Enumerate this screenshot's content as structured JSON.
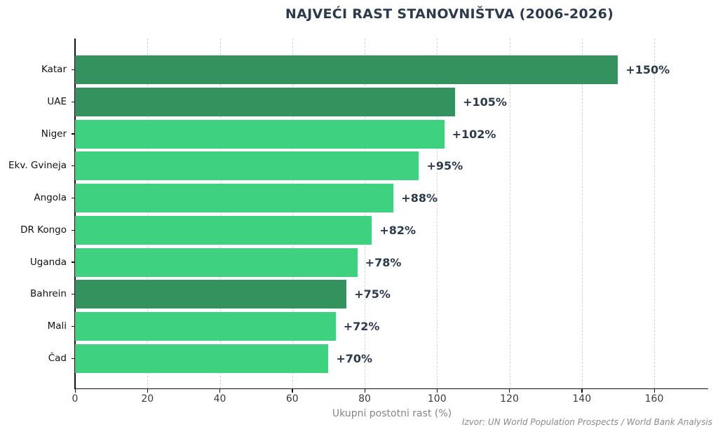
{
  "chart_data": {
    "type": "bar",
    "orientation": "horizontal",
    "title": "NAJVEĆI RAST STANOVNIŠTVA (2006-2026)",
    "xlabel": "Ukupni postotni rast (%)",
    "ylabel": "",
    "source": "Izvor: UN World Population Prospects / World Bank Analysis",
    "categories": [
      "Katar",
      "UAE",
      "Niger",
      "Ekv. Gvineja",
      "Angola",
      "DR Kongo",
      "Uganda",
      "Bahrein",
      "Mali",
      "Čad"
    ],
    "values": [
      150,
      105,
      102,
      95,
      88,
      82,
      78,
      75,
      72,
      70
    ],
    "value_labels": [
      "+150%",
      "+105%",
      "+102%",
      "+95%",
      "+88%",
      "+82%",
      "+78%",
      "+75%",
      "+72%",
      "+70%"
    ],
    "highlighted": [
      true,
      true,
      false,
      false,
      false,
      false,
      false,
      true,
      false,
      false
    ],
    "xticks": [
      0,
      20,
      40,
      60,
      80,
      100,
      120,
      140,
      160
    ],
    "xlim": [
      0,
      175
    ],
    "grid": "vertical-dashed",
    "legend": "none",
    "colors": {
      "bar_highlight": "#33925e",
      "bar_normal": "#3ed17f",
      "title_text": "#2c3a4e",
      "value_text": "#2c3a4e",
      "tick_text": "#3a3a3a",
      "xlabel_text": "#858585",
      "source_text": "#8a8a8a",
      "gridline": "#d4d4d4",
      "spine": "#111111",
      "background": "#ffffff"
    }
  }
}
